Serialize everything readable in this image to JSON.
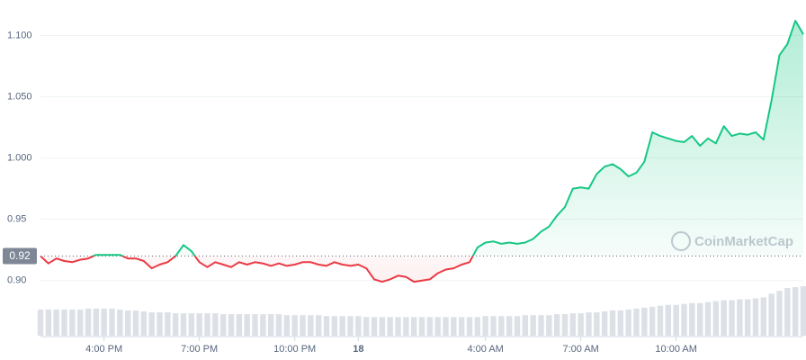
{
  "chart_data": {
    "type": "line",
    "up_color": "#16c784",
    "down_color": "#ea3943",
    "volume_color": "#c7ccd6",
    "grid": true,
    "watermark": "CoinMarketCap",
    "baseline": {
      "value": 0.92,
      "label": "0.92"
    },
    "ylim": [
      0.855,
      1.129
    ],
    "yticks": [
      {
        "value": 0.9,
        "label": "0.90"
      },
      0.95,
      {
        "value": 1.0,
        "label": "1.000"
      },
      {
        "value": 1.05,
        "label": "1.050"
      },
      {
        "value": 1.1,
        "label": "1.100"
      }
    ],
    "xlim": [
      0,
      96
    ],
    "xticks": [
      {
        "value": 8,
        "label": "4:00 PM"
      },
      {
        "value": 20,
        "label": "7:00 PM"
      },
      {
        "value": 32,
        "label": "10:00 PM"
      },
      {
        "value": 40,
        "label": "18"
      },
      {
        "value": 56,
        "label": "4:00 AM"
      },
      {
        "value": 68,
        "label": "7:00 AM"
      },
      {
        "value": 80,
        "label": "10:00 AM"
      }
    ],
    "values": [
      0.92,
      0.914,
      0.918,
      0.916,
      0.915,
      0.917,
      0.918,
      0.921,
      0.921,
      0.921,
      0.921,
      0.918,
      0.918,
      0.916,
      0.91,
      0.913,
      0.915,
      0.92,
      0.929,
      0.924,
      0.915,
      0.911,
      0.915,
      0.913,
      0.911,
      0.915,
      0.913,
      0.915,
      0.914,
      0.912,
      0.914,
      0.912,
      0.913,
      0.915,
      0.915,
      0.913,
      0.912,
      0.915,
      0.913,
      0.912,
      0.913,
      0.91,
      0.901,
      0.899,
      0.901,
      0.904,
      0.903,
      0.899,
      0.9,
      0.901,
      0.906,
      0.909,
      0.91,
      0.913,
      0.915,
      0.927,
      0.931,
      0.932,
      0.93,
      0.931,
      0.93,
      0.931,
      0.934,
      0.94,
      0.944,
      0.953,
      0.96,
      0.975,
      0.976,
      0.975,
      0.987,
      0.993,
      0.995,
      0.991,
      0.985,
      0.988,
      0.997,
      1.021,
      1.018,
      1.016,
      1.014,
      1.013,
      1.018,
      1.01,
      1.016,
      1.012,
      1.026,
      1.018,
      1.02,
      1.019,
      1.021,
      1.015,
      1.047,
      1.084,
      1.093,
      1.112,
      1.101
    ],
    "volume": [
      28,
      28,
      28,
      28,
      28,
      28,
      29,
      29,
      29,
      29,
      28,
      27,
      27,
      26,
      25,
      25,
      25,
      24,
      24,
      24,
      24,
      24,
      24,
      23,
      23,
      23,
      23,
      23,
      23,
      23,
      23,
      22,
      22,
      22,
      22,
      22,
      21,
      21,
      21,
      21,
      21,
      20,
      20,
      20,
      20,
      20,
      20,
      20,
      20,
      20,
      20,
      20,
      20,
      20,
      20,
      20,
      21,
      21,
      21,
      21,
      21,
      22,
      22,
      22,
      22,
      23,
      23,
      24,
      24,
      25,
      25,
      26,
      27,
      27,
      28,
      29,
      30,
      31,
      32,
      33,
      33,
      34,
      35,
      35,
      36,
      37,
      38,
      38,
      39,
      39,
      40,
      41,
      45,
      48,
      51,
      52,
      53
    ]
  }
}
